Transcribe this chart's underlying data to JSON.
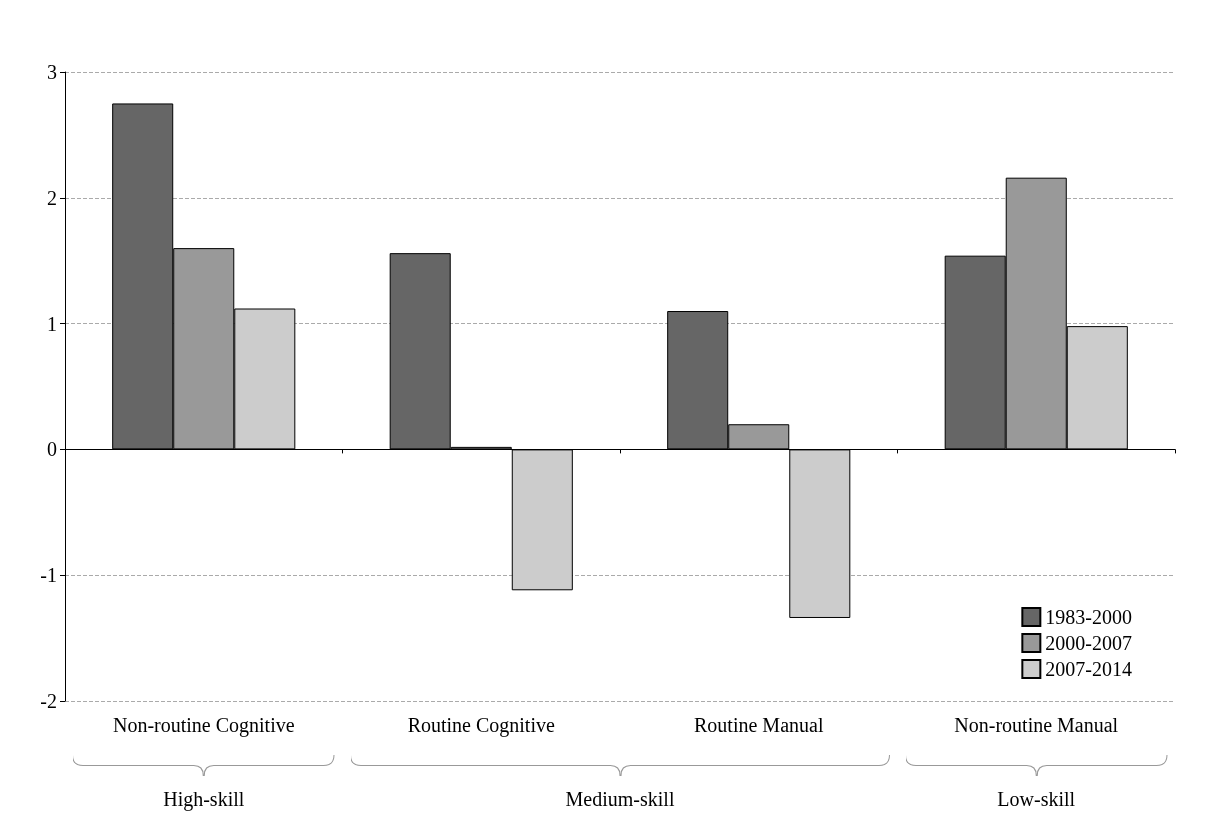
{
  "chart_data": {
    "type": "bar",
    "categories": [
      "Non-routine Cognitive",
      "Routine Cognitive",
      "Routine Manual",
      "Non-routine Manual"
    ],
    "series": [
      {
        "name": "1983-2000",
        "color": "#666666",
        "values": [
          2.75,
          1.56,
          1.1,
          1.54
        ]
      },
      {
        "name": "2000-2007",
        "color": "#999999",
        "values": [
          1.6,
          0.02,
          0.2,
          2.16
        ]
      },
      {
        "name": "2007-2014",
        "color": "#cccccc",
        "values": [
          1.12,
          -1.12,
          -1.34,
          0.98
        ]
      }
    ],
    "ylim": [
      -2,
      3
    ],
    "yticks": [
      -2,
      -1,
      0,
      1,
      2,
      3
    ],
    "grid": "y",
    "legend": "bottom right",
    "annotations": [
      "High-skill",
      "Medium-skill",
      "Low-skill"
    ]
  }
}
